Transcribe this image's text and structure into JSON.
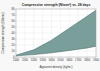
{
  "chart_data": {
    "type": "band",
    "title": "Compressive strength (N/mm²) vs. 28 days",
    "x_label": "Apparent density (kg/m³)",
    "y_label": "Compressive strength (N/mm²)",
    "xlim": [
      1000,
      1900
    ],
    "ylim": [
      0,
      80
    ],
    "xticks": [
      1000,
      1100,
      1200,
      1300,
      1400,
      1500,
      1600,
      1700,
      1800,
      1900
    ],
    "yticks": [
      0,
      10,
      20,
      30,
      40,
      50,
      60,
      70,
      80
    ],
    "x": [
      1000,
      1200,
      1400,
      1600,
      1800,
      1900
    ],
    "series": [
      {
        "values": [
          3,
          12,
          28,
          48,
          68,
          78
        ],
        "color": "#4a7070"
      },
      {
        "values": [
          2,
          4,
          7,
          11,
          15,
          18
        ],
        "color": "#4a7070"
      }
    ],
    "color": "#7a9e9a",
    "grid": true
  }
}
